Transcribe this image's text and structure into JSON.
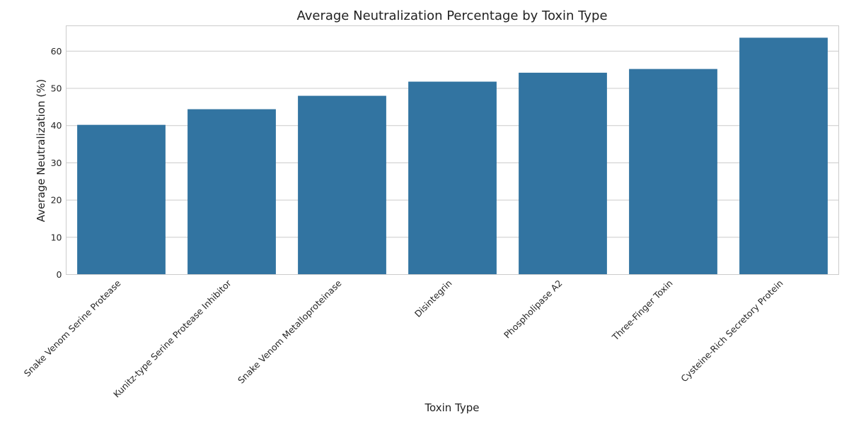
{
  "chart_data": {
    "type": "bar",
    "title": "Average Neutralization Percentage by Toxin Type",
    "xlabel": "Toxin Type",
    "ylabel": "Average Neutralization (%)",
    "categories": [
      "Snake Venom Serine Protease",
      "Kunitz-type Serine Protease Inhibitor",
      "Snake Venom Metalloproteinase",
      "Disintegrin",
      "Phospholipase A2",
      "Three-Finger Toxin",
      "Cysteine-Rich Secretory Protein"
    ],
    "values": [
      40.2,
      44.4,
      48.0,
      51.8,
      54.2,
      55.2,
      63.6
    ],
    "ylim": [
      0,
      66.8
    ],
    "yticks": [
      0,
      10,
      20,
      30,
      40,
      50,
      60
    ],
    "grid": true,
    "bar_color": "#3274a1",
    "grid_color": "#cccccc"
  }
}
